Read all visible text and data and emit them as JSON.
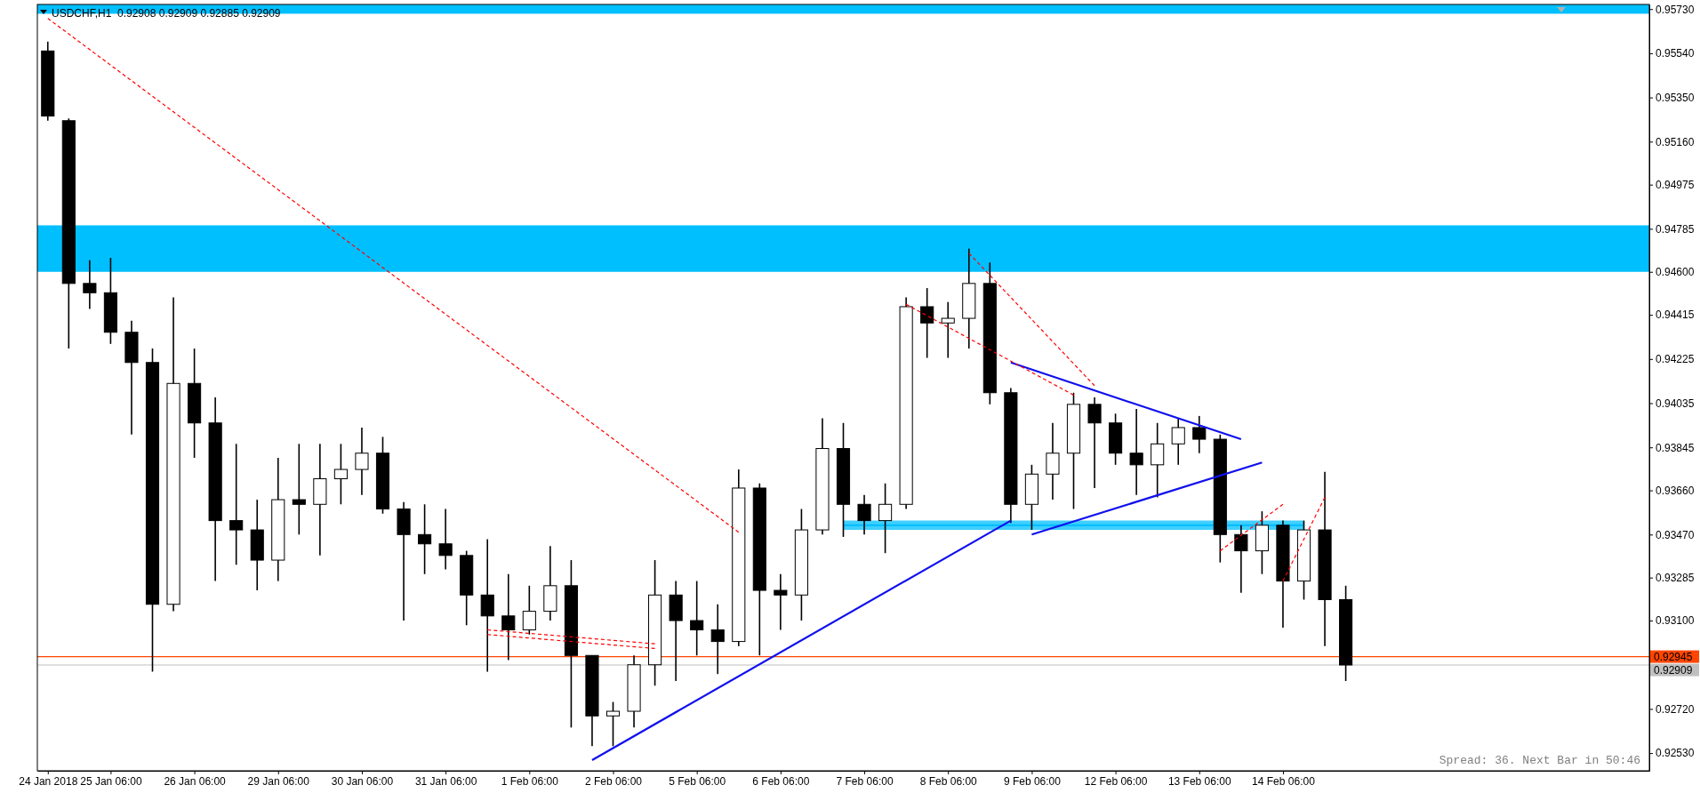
{
  "chart_data": {
    "type": "candlestick",
    "title": "USDCHF,H1  0.92908 0.92909 0.92885 0.92909",
    "color": "#000000",
    "categories": [
      "24 Jan 2018",
      null,
      null,
      "25 Jan 06:00",
      null,
      null,
      null,
      "26 Jan 06:00",
      null,
      null,
      null,
      "29 Jan 06:00",
      null,
      null,
      null,
      "30 Jan 06:00",
      null,
      null,
      null,
      "31 Jan 06:00",
      null,
      null,
      null,
      "1 Feb 06:00",
      null,
      null,
      null,
      "2 Feb 06:00",
      null,
      null,
      null,
      "5 Feb 06:00",
      null,
      null,
      null,
      "6 Feb 06:00",
      null,
      null,
      null,
      "7 Feb 06:00",
      null,
      null,
      null,
      "8 Feb 06:00",
      null,
      null,
      null,
      "9 Feb 06:00",
      null,
      null,
      null,
      "12 Feb 06:00",
      null,
      null,
      null,
      "13 Feb 06:00",
      null,
      null,
      null,
      "14 Feb 06:00",
      null,
      null,
      null,
      null,
      null,
      null,
      null,
      null,
      null,
      null,
      null,
      null,
      null,
      null,
      null,
      null,
      null
    ],
    "ohlc": [
      [
        0.9555,
        0.9559,
        0.9525,
        0.9527
      ],
      [
        0.9525,
        0.9526,
        0.9427,
        0.9455
      ],
      [
        0.9455,
        0.9465,
        0.9444,
        0.9451
      ],
      [
        0.9451,
        0.9466,
        0.9429,
        0.9434
      ],
      [
        0.9434,
        0.9439,
        0.939,
        0.9421
      ],
      [
        0.9421,
        0.9427,
        0.9288,
        0.9317
      ],
      [
        0.9317,
        0.9449,
        0.9314,
        0.9412
      ],
      [
        0.9412,
        0.9427,
        0.938,
        0.9395
      ],
      [
        0.9395,
        0.9406,
        0.9327,
        0.9353
      ],
      [
        0.9353,
        0.9386,
        0.9334,
        0.9349
      ],
      [
        0.9349,
        0.9362,
        0.9323,
        0.9336
      ],
      [
        0.9336,
        0.938,
        0.9327,
        0.9362
      ],
      [
        0.9362,
        0.9386,
        0.9347,
        0.936
      ],
      [
        0.936,
        0.9386,
        0.9338,
        0.9371
      ],
      [
        0.9371,
        0.9386,
        0.936,
        0.9375
      ],
      [
        0.9375,
        0.9393,
        0.9364,
        0.9382
      ],
      [
        0.9382,
        0.9389,
        0.9356,
        0.9358
      ],
      [
        0.9358,
        0.9361,
        0.931,
        0.9347
      ],
      [
        0.9347,
        0.936,
        0.933,
        0.9343
      ],
      [
        0.9343,
        0.9358,
        0.9332,
        0.9338
      ],
      [
        0.9338,
        0.934,
        0.9308,
        0.9321
      ],
      [
        0.9321,
        0.9345,
        0.9288,
        0.9312
      ],
      [
        0.9312,
        0.933,
        0.9293,
        0.9306
      ],
      [
        0.9306,
        0.9325,
        0.9304,
        0.9314
      ],
      [
        0.9314,
        0.9342,
        0.931,
        0.9325
      ],
      [
        0.9325,
        0.9336,
        0.9264,
        0.9295
      ],
      [
        0.9295,
        0.9295,
        0.9256,
        0.9269
      ],
      [
        0.9269,
        0.9275,
        0.9256,
        0.9271
      ],
      [
        0.9271,
        0.9295,
        0.9264,
        0.9291
      ],
      [
        0.9291,
        0.9336,
        0.9282,
        0.9321
      ],
      [
        0.9321,
        0.9327,
        0.9284,
        0.931
      ],
      [
        0.931,
        0.9327,
        0.9295,
        0.9306
      ],
      [
        0.9306,
        0.9317,
        0.9287,
        0.9301
      ],
      [
        0.9301,
        0.9375,
        0.9299,
        0.9367
      ],
      [
        0.9367,
        0.9369,
        0.9295,
        0.9323
      ],
      [
        0.9323,
        0.933,
        0.9306,
        0.9321
      ],
      [
        0.9321,
        0.9358,
        0.931,
        0.9349
      ],
      [
        0.9349,
        0.9397,
        0.9347,
        0.9384
      ],
      [
        0.9384,
        0.9395,
        0.9346,
        0.936
      ],
      [
        0.936,
        0.9364,
        0.9347,
        0.9353
      ],
      [
        0.9353,
        0.9369,
        0.9339,
        0.936
      ],
      [
        0.936,
        0.9449,
        0.9358,
        0.9445
      ],
      [
        0.9445,
        0.9453,
        0.9423,
        0.9438
      ],
      [
        0.9438,
        0.9447,
        0.9423,
        0.944
      ],
      [
        0.944,
        0.947,
        0.9427,
        0.9455
      ],
      [
        0.9455,
        0.9464,
        0.9403,
        0.9408
      ],
      [
        0.9408,
        0.941,
        0.9352,
        0.936
      ],
      [
        0.936,
        0.9377,
        0.9349,
        0.9373
      ],
      [
        0.9373,
        0.9395,
        0.9362,
        0.9382
      ],
      [
        0.9382,
        0.9408,
        0.9358,
        0.9403
      ],
      [
        0.9403,
        0.9406,
        0.9367,
        0.9395
      ],
      [
        0.9395,
        0.9399,
        0.9377,
        0.9382
      ],
      [
        0.9382,
        0.9401,
        0.9364,
        0.9377
      ],
      [
        0.9377,
        0.9395,
        0.9363,
        0.9386
      ],
      [
        0.9386,
        0.9397,
        0.9377,
        0.9393
      ],
      [
        0.9393,
        0.9398,
        0.9382,
        0.9388
      ],
      [
        0.9388,
        0.939,
        0.9335,
        0.9347
      ],
      [
        0.9347,
        0.9351,
        0.9322,
        0.934
      ],
      [
        0.934,
        0.9357,
        0.933,
        0.9351
      ],
      [
        0.9351,
        0.9353,
        0.9307,
        0.9327
      ],
      [
        0.9327,
        0.9353,
        0.9319,
        0.9349
      ],
      [
        0.9349,
        0.9374,
        0.9299,
        0.9319
      ],
      [
        0.9319,
        0.9325,
        0.9284,
        0.92909
      ],
      null,
      null,
      null,
      null,
      null,
      null,
      null,
      null,
      null,
      null,
      null,
      null,
      null,
      null
    ],
    "series": [
      {
        "type": "line",
        "color": "#1010ee",
        "values": [
          null,
          null,
          null,
          null,
          null,
          null,
          null,
          null,
          null,
          null,
          null,
          null,
          null,
          null,
          null,
          null,
          null,
          null,
          null,
          null,
          null,
          null,
          null,
          null,
          null,
          null,
          0.925,
          null,
          null,
          null,
          null,
          null,
          null,
          null,
          null,
          null,
          null,
          null,
          null,
          null,
          null,
          null,
          null,
          null,
          null,
          null,
          0.9353,
          null,
          null,
          null,
          null,
          null,
          null,
          null,
          null,
          null,
          null,
          null,
          null,
          null,
          null,
          null,
          null,
          null,
          null,
          null,
          null,
          null,
          null,
          null,
          null,
          null,
          null,
          null,
          null,
          null,
          null
        ]
      },
      {
        "type": "line",
        "color": "#1010ee",
        "values": [
          null,
          null,
          null,
          null,
          null,
          null,
          null,
          null,
          null,
          null,
          null,
          null,
          null,
          null,
          null,
          null,
          null,
          null,
          null,
          null,
          null,
          null,
          null,
          null,
          null,
          null,
          null,
          null,
          null,
          null,
          null,
          null,
          null,
          null,
          null,
          null,
          null,
          null,
          null,
          null,
          null,
          null,
          null,
          null,
          null,
          null,
          0.9421,
          null,
          null,
          null,
          null,
          null,
          null,
          null,
          null,
          null,
          null,
          0.9388,
          null,
          null,
          null,
          null,
          null,
          null,
          null,
          null,
          null,
          null,
          null,
          null,
          null,
          null,
          null,
          null,
          null,
          null,
          null
        ]
      },
      {
        "type": "line",
        "color": "#1010ee",
        "values": [
          null,
          null,
          null,
          null,
          null,
          null,
          null,
          null,
          null,
          null,
          null,
          null,
          null,
          null,
          null,
          null,
          null,
          null,
          null,
          null,
          null,
          null,
          null,
          null,
          null,
          null,
          null,
          null,
          null,
          null,
          null,
          null,
          null,
          null,
          null,
          null,
          null,
          null,
          null,
          null,
          null,
          null,
          null,
          null,
          null,
          null,
          null,
          0.9347,
          null,
          null,
          null,
          null,
          null,
          null,
          null,
          null,
          null,
          null,
          0.9378,
          null,
          null,
          null,
          null,
          null,
          null,
          null,
          null,
          null,
          null,
          null,
          null,
          null,
          null,
          null,
          null,
          null,
          null
        ]
      },
      {
        "type": "line",
        "color": "#00bfff",
        "values": [
          null,
          null,
          null,
          null,
          null,
          null,
          null,
          null,
          null,
          null,
          null,
          null,
          null,
          null,
          null,
          null,
          null,
          null,
          null,
          null,
          null,
          null,
          null,
          null,
          null,
          null,
          null,
          null,
          null,
          null,
          null,
          null,
          null,
          null,
          null,
          null,
          null,
          null,
          0.9351,
          null,
          null,
          null,
          null,
          null,
          null,
          null,
          null,
          null,
          null,
          null,
          null,
          null,
          null,
          null,
          null,
          null,
          null,
          null,
          null,
          null,
          0.9351,
          null,
          null,
          null,
          null,
          null,
          null,
          null,
          null,
          null,
          null,
          null,
          null,
          null,
          null,
          null,
          null
        ],
        "lower": [
          null,
          null,
          null,
          null,
          null,
          null,
          null,
          null,
          null,
          null,
          null,
          null,
          null,
          null,
          null,
          null,
          null,
          null,
          null,
          null,
          null,
          null,
          null,
          null,
          null,
          null,
          null,
          null,
          null,
          null,
          null,
          null,
          null,
          null,
          null,
          null,
          null,
          null,
          0.9349,
          null,
          null,
          null,
          null,
          null,
          null,
          null,
          null,
          null,
          null,
          null,
          null,
          null,
          null,
          null,
          null,
          null,
          null,
          null,
          null,
          null,
          0.9349,
          null,
          null,
          null,
          null,
          null,
          null,
          null,
          null,
          null,
          null,
          null,
          null,
          null,
          null,
          null,
          null
        ],
        "upper": [
          null,
          null,
          null,
          null,
          null,
          null,
          null,
          null,
          null,
          null,
          null,
          null,
          null,
          null,
          null,
          null,
          null,
          null,
          null,
          null,
          null,
          null,
          null,
          null,
          null,
          null,
          null,
          null,
          null,
          null,
          null,
          null,
          null,
          null,
          null,
          null,
          null,
          null,
          0.9353,
          null,
          null,
          null,
          null,
          null,
          null,
          null,
          null,
          null,
          null,
          null,
          null,
          null,
          null,
          null,
          null,
          null,
          null,
          null,
          null,
          null,
          0.9353,
          null,
          null,
          null,
          null,
          null,
          null,
          null,
          null,
          null,
          null,
          null,
          null,
          null,
          null,
          null,
          null
        ]
      },
      {
        "type": "line",
        "color": "#ff0000",
        "line_style": "dashed",
        "values": [
          0.9569,
          null,
          null,
          null,
          null,
          null,
          null,
          null,
          null,
          null,
          null,
          null,
          null,
          null,
          null,
          null,
          null,
          null,
          null,
          null,
          null,
          null,
          null,
          null,
          null,
          null,
          null,
          null,
          null,
          null,
          null,
          null,
          null,
          0.9348,
          null,
          null,
          null,
          null,
          null,
          null,
          null,
          null,
          null,
          null,
          null,
          null,
          null,
          null,
          null,
          null,
          null,
          null,
          null,
          null,
          null,
          null,
          null,
          null,
          null,
          null,
          null,
          null,
          null,
          null,
          null,
          null,
          null,
          null,
          null,
          null,
          null,
          null,
          null,
          null,
          null,
          null,
          null
        ]
      },
      {
        "type": "line",
        "color": "#ff0000",
        "line_style": "dashed",
        "values": [
          null,
          null,
          null,
          null,
          null,
          null,
          null,
          null,
          null,
          null,
          null,
          null,
          null,
          null,
          null,
          null,
          null,
          null,
          null,
          null,
          null,
          0.9306,
          null,
          null,
          null,
          null,
          null,
          null,
          null,
          0.93,
          null,
          null,
          null,
          null,
          null,
          null,
          null,
          null,
          null,
          null,
          null,
          null,
          null,
          null,
          null,
          null,
          null,
          null,
          null,
          null,
          null,
          null,
          null,
          null,
          null,
          null,
          null,
          null,
          null,
          null,
          null,
          null,
          null,
          null,
          null,
          null,
          null,
          null,
          null,
          null,
          null,
          null,
          null,
          null,
          null,
          null,
          null
        ]
      },
      {
        "type": "line",
        "color": "#ff0000",
        "line_style": "dashed",
        "values": [
          null,
          null,
          null,
          null,
          null,
          null,
          null,
          null,
          null,
          null,
          null,
          null,
          null,
          null,
          null,
          null,
          null,
          null,
          null,
          null,
          null,
          0.9304,
          null,
          null,
          null,
          null,
          null,
          null,
          null,
          0.9298,
          null,
          null,
          null,
          null,
          null,
          null,
          null,
          null,
          null,
          null,
          null,
          null,
          null,
          null,
          null,
          null,
          null,
          null,
          null,
          null,
          null,
          null,
          null,
          null,
          null,
          null,
          null,
          null,
          null,
          null,
          null,
          null,
          null,
          null,
          null,
          null,
          null,
          null,
          null,
          null,
          null,
          null,
          null,
          null,
          null,
          null,
          null
        ]
      },
      {
        "type": "line",
        "color": "#ff0000",
        "line_style": "dashed",
        "values": [
          null,
          null,
          null,
          null,
          null,
          null,
          null,
          null,
          null,
          null,
          null,
          null,
          null,
          null,
          null,
          null,
          null,
          null,
          null,
          null,
          null,
          null,
          null,
          null,
          null,
          null,
          null,
          null,
          null,
          null,
          null,
          null,
          null,
          null,
          null,
          null,
          null,
          null,
          null,
          null,
          null,
          0.9446,
          null,
          null,
          null,
          null,
          null,
          null,
          null,
          0.9407,
          null,
          null,
          null,
          null,
          null,
          null,
          null,
          null,
          null,
          null,
          null,
          null,
          null,
          null,
          null,
          null,
          null,
          null,
          null,
          null,
          null,
          null,
          null,
          null,
          null,
          null,
          null
        ]
      },
      {
        "type": "line",
        "color": "#ff0000",
        "line_style": "dashed",
        "values": [
          null,
          null,
          null,
          null,
          null,
          null,
          null,
          null,
          null,
          null,
          null,
          null,
          null,
          null,
          null,
          null,
          null,
          null,
          null,
          null,
          null,
          null,
          null,
          null,
          null,
          null,
          null,
          null,
          null,
          null,
          null,
          null,
          null,
          null,
          null,
          null,
          null,
          null,
          null,
          null,
          null,
          null,
          null,
          null,
          0.9468,
          null,
          null,
          null,
          null,
          null,
          0.9411,
          null,
          null,
          null,
          null,
          null,
          null,
          null,
          null,
          null,
          null,
          null,
          null,
          null,
          null,
          null,
          null,
          null,
          null,
          null,
          null,
          null,
          null,
          null,
          null,
          null,
          null
        ]
      },
      {
        "type": "line",
        "color": "#ff0000",
        "line_style": "dashed",
        "values": [
          null,
          null,
          null,
          null,
          null,
          null,
          null,
          null,
          null,
          null,
          null,
          null,
          null,
          null,
          null,
          null,
          null,
          null,
          null,
          null,
          null,
          null,
          null,
          null,
          null,
          null,
          null,
          null,
          null,
          null,
          null,
          null,
          null,
          null,
          null,
          null,
          null,
          null,
          null,
          null,
          null,
          null,
          null,
          null,
          null,
          null,
          null,
          null,
          null,
          null,
          null,
          null,
          null,
          null,
          null,
          null,
          0.934,
          null,
          null,
          0.936,
          null,
          null,
          null,
          null,
          null,
          null,
          null,
          null,
          null,
          null,
          null,
          null,
          null,
          null,
          null,
          null,
          null
        ]
      },
      {
        "type": "line",
        "color": "#ff0000",
        "line_style": "dashed",
        "values": [
          null,
          null,
          null,
          null,
          null,
          null,
          null,
          null,
          null,
          null,
          null,
          null,
          null,
          null,
          null,
          null,
          null,
          null,
          null,
          null,
          null,
          null,
          null,
          null,
          null,
          null,
          null,
          null,
          null,
          null,
          null,
          null,
          null,
          null,
          null,
          null,
          null,
          null,
          null,
          null,
          null,
          null,
          null,
          null,
          null,
          null,
          null,
          null,
          null,
          null,
          null,
          null,
          null,
          null,
          null,
          null,
          null,
          null,
          null,
          0.9327,
          null,
          0.9363,
          null,
          null,
          null,
          null,
          null,
          null,
          null,
          null,
          null,
          null,
          null,
          null,
          null,
          null,
          null
        ]
      }
    ],
    "bands": [
      {
        "axis": "y",
        "from": 0.9571,
        "to": 0.9575,
        "color": "#00bfff"
      },
      {
        "axis": "y",
        "from": 0.946,
        "to": 0.948,
        "color": "#00bfff"
      }
    ],
    "ref_lines": [
      {
        "axis": "y",
        "value": 0.92945,
        "label": "0.92945",
        "color": "#ff4500"
      },
      {
        "axis": "y",
        "value": 0.92909,
        "label": "0.92909",
        "color": "#c0c0c0"
      }
    ],
    "annotations": [
      "Spread: 36. Next Bar in 50:46"
    ],
    "ylim": [
      0.92454,
      0.9575
    ],
    "yticks": [
      {
        "value": 0.9573,
        "label": "0.95730"
      },
      {
        "value": 0.9554,
        "label": "0.95540"
      },
      {
        "value": 0.9535,
        "label": "0.95350"
      },
      {
        "value": 0.9516,
        "label": "0.95160"
      },
      0.94975,
      0.94785,
      {
        "value": 0.946,
        "label": "0.94600"
      },
      0.94415,
      0.94225,
      0.94035,
      0.93845,
      {
        "value": 0.9366,
        "label": "0.93660"
      },
      {
        "value": 0.9347,
        "label": "0.93470"
      },
      0.93285,
      {
        "value": 0.931,
        "label": "0.93100"
      },
      {
        "value": 0.9272,
        "label": "0.92720"
      },
      {
        "value": 0.9253,
        "label": "0.92530"
      }
    ]
  }
}
